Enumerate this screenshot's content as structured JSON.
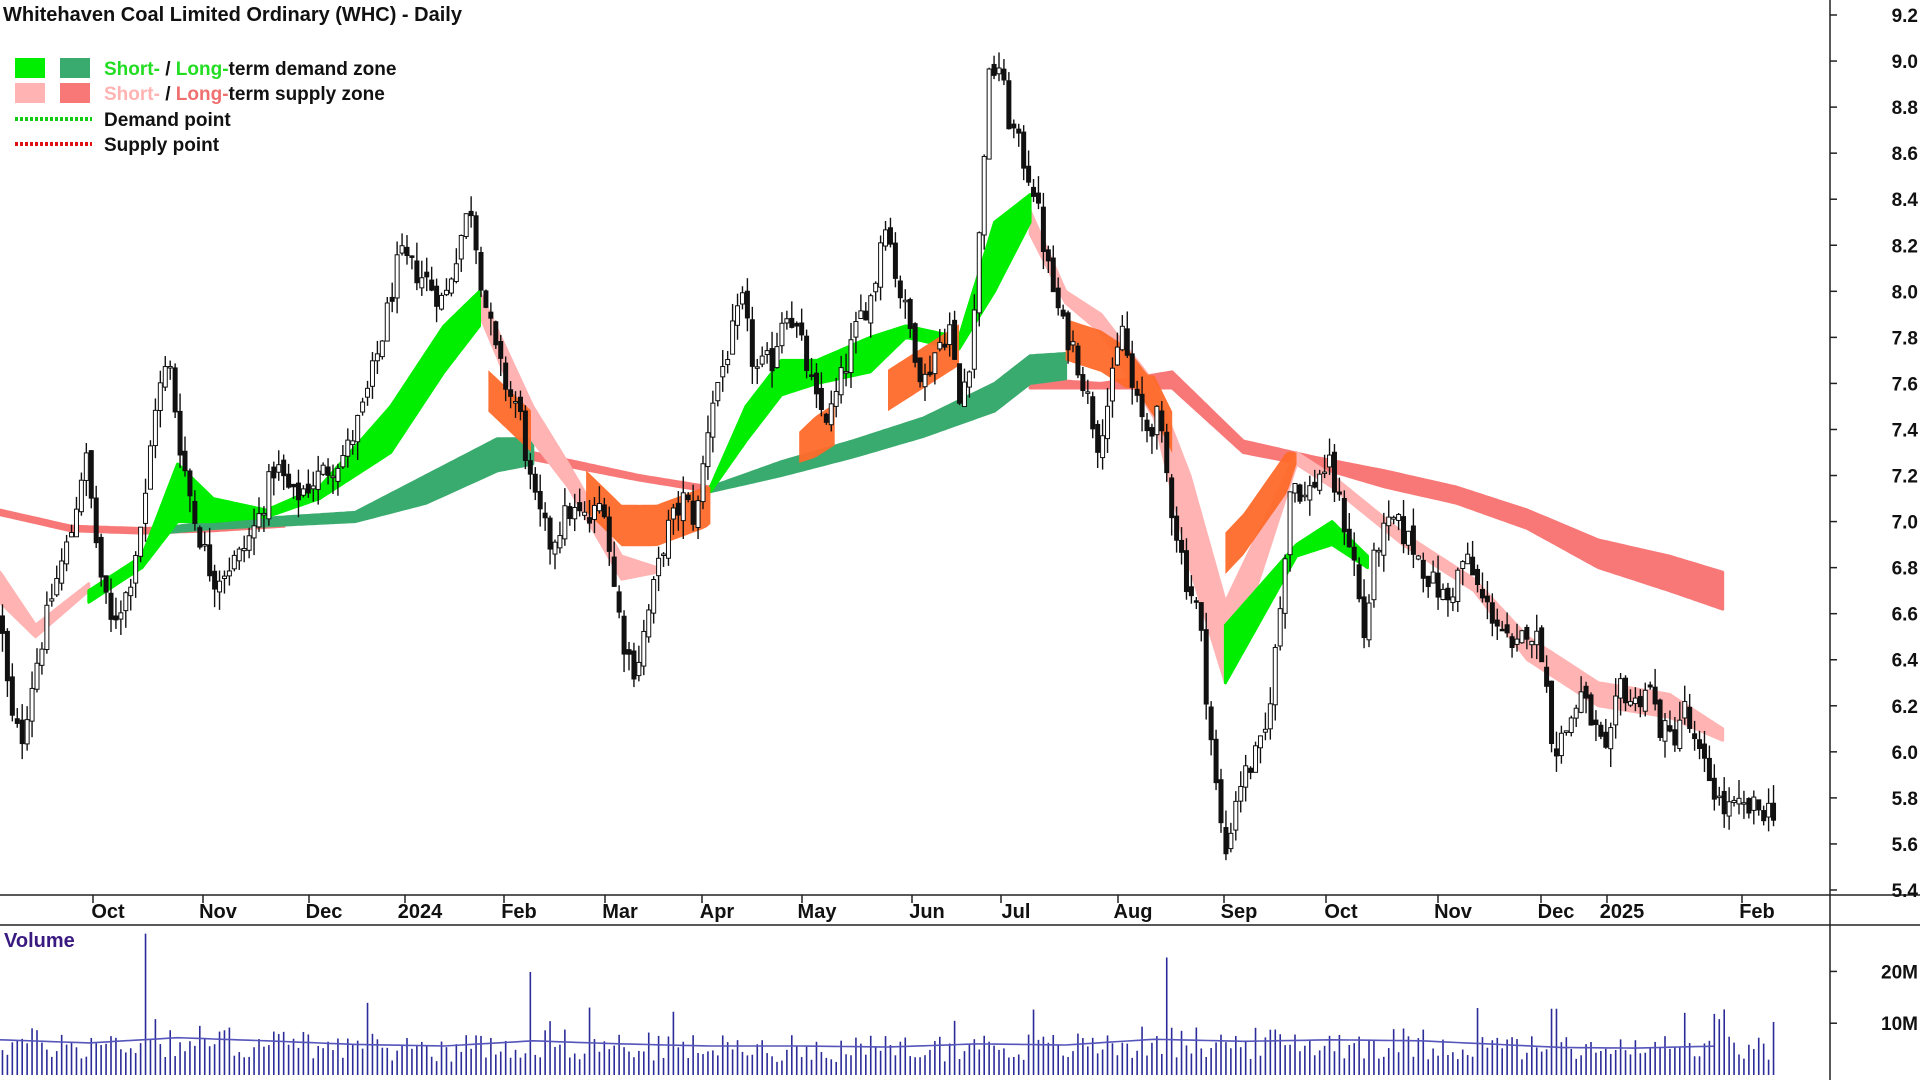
{
  "chart_data": {
    "type": "candlestick",
    "title": "Whitehaven Coal Limited Ordinary (WHC) - Daily",
    "price_axis": {
      "range": [
        5.4,
        9.2
      ],
      "ticks": [
        9.2,
        9.0,
        8.8,
        8.6,
        8.4,
        8.2,
        8.0,
        7.8,
        7.6,
        7.4,
        7.2,
        7.0,
        6.8,
        6.6,
        6.4,
        6.2,
        6.0,
        5.8,
        5.6,
        5.4
      ],
      "position": "right"
    },
    "x_labels": [
      "Oct",
      "Nov",
      "Dec",
      "2024",
      "Feb",
      "Mar",
      "Apr",
      "May",
      "Jun",
      "Jul",
      "Aug",
      "Sep",
      "Oct",
      "Nov",
      "Dec",
      "2025",
      "Feb"
    ],
    "legend": {
      "placement": "top-left",
      "items": [
        {
          "kind": "zone",
          "swatches": [
            "#00ee00",
            "#3aab6e"
          ],
          "parts": [
            {
              "text": "Short-",
              "color": "#22dd22"
            },
            {
              "text": " / ",
              "color": "#111111"
            },
            {
              "text": "Long-",
              "color": "#22dd22"
            },
            {
              "text": "term demand zone",
              "color": "#111111"
            }
          ]
        },
        {
          "kind": "zone",
          "swatches": [
            "#ffb3b3",
            "#f87878"
          ],
          "parts": [
            {
              "text": "Short-",
              "color": "#ffb3b3"
            },
            {
              "text": " / ",
              "color": "#111111"
            },
            {
              "text": "Long-",
              "color": "#f07070"
            },
            {
              "text": "term supply zone",
              "color": "#111111"
            }
          ]
        },
        {
          "kind": "point",
          "color": "#11cc11",
          "parts": [
            {
              "text": "Demand point",
              "color": "#111111"
            }
          ]
        },
        {
          "kind": "point",
          "color": "#dd1111",
          "parts": [
            {
              "text": "Supply point",
              "color": "#111111"
            }
          ]
        }
      ]
    },
    "price_path": [
      {
        "p": 0,
        "v": 6.6
      },
      {
        "p": 0.006,
        "v": 6.15
      },
      {
        "p": 0.012,
        "v": 6.05
      },
      {
        "p": 0.018,
        "v": 6.3
      },
      {
        "p": 0.03,
        "v": 6.7
      },
      {
        "p": 0.04,
        "v": 6.95
      },
      {
        "p": 0.048,
        "v": 7.3
      },
      {
        "p": 0.056,
        "v": 6.8
      },
      {
        "p": 0.062,
        "v": 6.55
      },
      {
        "p": 0.072,
        "v": 6.7
      },
      {
        "p": 0.082,
        "v": 7.1
      },
      {
        "p": 0.087,
        "v": 7.5
      },
      {
        "p": 0.095,
        "v": 7.7
      },
      {
        "p": 0.102,
        "v": 7.3
      },
      {
        "p": 0.11,
        "v": 7.0
      },
      {
        "p": 0.12,
        "v": 6.75
      },
      {
        "p": 0.135,
        "v": 6.85
      },
      {
        "p": 0.145,
        "v": 7.0
      },
      {
        "p": 0.155,
        "v": 7.25
      },
      {
        "p": 0.165,
        "v": 7.1
      },
      {
        "p": 0.18,
        "v": 7.2
      },
      {
        "p": 0.195,
        "v": 7.3
      },
      {
        "p": 0.205,
        "v": 7.5
      },
      {
        "p": 0.215,
        "v": 7.8
      },
      {
        "p": 0.225,
        "v": 8.15
      },
      {
        "p": 0.232,
        "v": 8.1
      },
      {
        "p": 0.24,
        "v": 8.05
      },
      {
        "p": 0.25,
        "v": 7.95
      },
      {
        "p": 0.258,
        "v": 8.2
      },
      {
        "p": 0.265,
        "v": 8.38
      },
      {
        "p": 0.272,
        "v": 8.0
      },
      {
        "p": 0.28,
        "v": 7.7
      },
      {
        "p": 0.287,
        "v": 7.55
      },
      {
        "p": 0.292,
        "v": 7.5
      },
      {
        "p": 0.3,
        "v": 7.1
      },
      {
        "p": 0.31,
        "v": 6.9
      },
      {
        "p": 0.32,
        "v": 7.05
      },
      {
        "p": 0.332,
        "v": 7.0
      },
      {
        "p": 0.34,
        "v": 7.1
      },
      {
        "p": 0.345,
        "v": 6.75
      },
      {
        "p": 0.352,
        "v": 6.45
      },
      {
        "p": 0.358,
        "v": 6.35
      },
      {
        "p": 0.365,
        "v": 6.6
      },
      {
        "p": 0.375,
        "v": 6.95
      },
      {
        "p": 0.385,
        "v": 7.1
      },
      {
        "p": 0.392,
        "v": 7.0
      },
      {
        "p": 0.4,
        "v": 7.5
      },
      {
        "p": 0.41,
        "v": 7.75
      },
      {
        "p": 0.418,
        "v": 7.95
      },
      {
        "p": 0.425,
        "v": 7.65
      },
      {
        "p": 0.435,
        "v": 7.7
      },
      {
        "p": 0.442,
        "v": 7.95
      },
      {
        "p": 0.45,
        "v": 7.8
      },
      {
        "p": 0.46,
        "v": 7.5
      },
      {
        "p": 0.467,
        "v": 7.45
      },
      {
        "p": 0.475,
        "v": 7.65
      },
      {
        "p": 0.485,
        "v": 7.9
      },
      {
        "p": 0.492,
        "v": 8.0
      },
      {
        "p": 0.498,
        "v": 8.35
      },
      {
        "p": 0.505,
        "v": 8.05
      },
      {
        "p": 0.512,
        "v": 7.85
      },
      {
        "p": 0.52,
        "v": 7.6
      },
      {
        "p": 0.527,
        "v": 7.75
      },
      {
        "p": 0.535,
        "v": 7.85
      },
      {
        "p": 0.54,
        "v": 7.5
      },
      {
        "p": 0.547,
        "v": 7.75
      },
      {
        "p": 0.552,
        "v": 8.3
      },
      {
        "p": 0.556,
        "v": 8.9
      },
      {
        "p": 0.562,
        "v": 9.0
      },
      {
        "p": 0.568,
        "v": 8.75
      },
      {
        "p": 0.575,
        "v": 8.6
      },
      {
        "p": 0.582,
        "v": 8.45
      },
      {
        "p": 0.59,
        "v": 8.1
      },
      {
        "p": 0.598,
        "v": 7.85
      },
      {
        "p": 0.605,
        "v": 7.75
      },
      {
        "p": 0.612,
        "v": 7.55
      },
      {
        "p": 0.618,
        "v": 7.35
      },
      {
        "p": 0.625,
        "v": 7.55
      },
      {
        "p": 0.632,
        "v": 7.85
      },
      {
        "p": 0.638,
        "v": 7.55
      },
      {
        "p": 0.645,
        "v": 7.4
      },
      {
        "p": 0.652,
        "v": 7.45
      },
      {
        "p": 0.66,
        "v": 7.05
      },
      {
        "p": 0.668,
        "v": 6.75
      },
      {
        "p": 0.675,
        "v": 6.6
      },
      {
        "p": 0.68,
        "v": 6.2
      },
      {
        "p": 0.686,
        "v": 5.75
      },
      {
        "p": 0.69,
        "v": 5.55
      },
      {
        "p": 0.697,
        "v": 5.85
      },
      {
        "p": 0.705,
        "v": 5.95
      },
      {
        "p": 0.712,
        "v": 6.05
      },
      {
        "p": 0.72,
        "v": 6.55
      },
      {
        "p": 0.727,
        "v": 7.2
      },
      {
        "p": 0.735,
        "v": 7.1
      },
      {
        "p": 0.742,
        "v": 7.2
      },
      {
        "p": 0.748,
        "v": 7.25
      },
      {
        "p": 0.755,
        "v": 7.05
      },
      {
        "p": 0.762,
        "v": 6.85
      },
      {
        "p": 0.768,
        "v": 6.5
      },
      {
        "p": 0.775,
        "v": 6.9
      },
      {
        "p": 0.785,
        "v": 7.0
      },
      {
        "p": 0.795,
        "v": 6.9
      },
      {
        "p": 0.805,
        "v": 6.75
      },
      {
        "p": 0.815,
        "v": 6.65
      },
      {
        "p": 0.825,
        "v": 6.85
      },
      {
        "p": 0.835,
        "v": 6.65
      },
      {
        "p": 0.845,
        "v": 6.55
      },
      {
        "p": 0.852,
        "v": 6.4
      },
      {
        "p": 0.86,
        "v": 6.55
      },
      {
        "p": 0.868,
        "v": 6.45
      },
      {
        "p": 0.875,
        "v": 6.0
      },
      {
        "p": 0.882,
        "v": 6.1
      },
      {
        "p": 0.89,
        "v": 6.25
      },
      {
        "p": 0.898,
        "v": 6.1
      },
      {
        "p": 0.905,
        "v": 5.95
      },
      {
        "p": 0.912,
        "v": 6.3
      },
      {
        "p": 0.92,
        "v": 6.2
      },
      {
        "p": 0.928,
        "v": 6.3
      },
      {
        "p": 0.935,
        "v": 6.1
      },
      {
        "p": 0.942,
        "v": 6.05
      },
      {
        "p": 0.948,
        "v": 6.2
      },
      {
        "p": 0.955,
        "v": 6.0
      },
      {
        "p": 0.962,
        "v": 5.9
      },
      {
        "p": 0.97,
        "v": 5.75
      }
    ],
    "zones": [
      {
        "name": "Long-term supply zone",
        "kind": "supply",
        "term": "long",
        "color": "#f87878",
        "points": [
          [
            0,
            7.05,
            7.03
          ],
          [
            0.04,
            6.98,
            6.96
          ],
          [
            0.08,
            6.97,
            6.95
          ],
          [
            0.12,
            6.98,
            6.96
          ],
          [
            0.16,
            7.0,
            6.98
          ],
          [
            0.3,
            7.3,
            7.27
          ],
          [
            0.36,
            7.2,
            7.18
          ],
          [
            0.4,
            7.15,
            7.13
          ],
          [
            0.58,
            7.62,
            7.58
          ],
          [
            0.62,
            7.6,
            7.58
          ],
          [
            0.66,
            7.65,
            7.58
          ],
          [
            0.7,
            7.35,
            7.3
          ],
          [
            0.74,
            7.28,
            7.24
          ],
          [
            0.78,
            7.22,
            7.15
          ],
          [
            0.82,
            7.15,
            7.08
          ],
          [
            0.86,
            7.05,
            6.97
          ],
          [
            0.9,
            6.92,
            6.8
          ],
          [
            0.94,
            6.85,
            6.7
          ],
          [
            0.97,
            6.78,
            6.62
          ]
        ]
      },
      {
        "name": "Long-term demand zone",
        "kind": "demand",
        "term": "long",
        "color": "#3aab6e",
        "points": [
          [
            0.09,
            6.97,
            6.95
          ],
          [
            0.12,
            7.0,
            6.97
          ],
          [
            0.2,
            7.04,
            7.0
          ],
          [
            0.24,
            7.2,
            7.08
          ],
          [
            0.28,
            7.36,
            7.22
          ],
          [
            0.3,
            7.36,
            7.25
          ],
          [
            0.4,
            7.15,
            7.13
          ],
          [
            0.44,
            7.26,
            7.2
          ],
          [
            0.48,
            7.35,
            7.28
          ],
          [
            0.52,
            7.45,
            7.37
          ],
          [
            0.56,
            7.6,
            7.48
          ],
          [
            0.58,
            7.72,
            7.6
          ],
          [
            0.6,
            7.73,
            7.62
          ]
        ]
      },
      {
        "name": "Short-term supply zone",
        "kind": "supply",
        "term": "short",
        "color": "#ffb3b3",
        "points": [
          [
            0,
            6.78,
            6.65
          ],
          [
            0.02,
            6.55,
            6.5
          ],
          [
            0.05,
            6.73,
            6.7
          ],
          [
            0.27,
            8.0,
            7.9
          ],
          [
            0.3,
            7.5,
            7.35
          ],
          [
            0.32,
            7.25,
            7.15
          ],
          [
            0.35,
            6.85,
            6.75
          ],
          [
            0.37,
            6.8,
            6.78
          ],
          [
            0.58,
            8.35,
            8.25
          ],
          [
            0.6,
            8.0,
            7.95
          ],
          [
            0.62,
            7.9,
            7.82
          ],
          [
            0.65,
            7.6,
            7.45
          ],
          [
            0.67,
            7.2,
            6.8
          ],
          [
            0.69,
            6.65,
            6.3
          ],
          [
            0.73,
            7.3,
            7.25
          ],
          [
            0.75,
            7.2,
            7.15
          ],
          [
            0.79,
            6.95,
            6.9
          ],
          [
            0.83,
            6.75,
            6.7
          ],
          [
            0.86,
            6.5,
            6.4
          ],
          [
            0.9,
            6.3,
            6.2
          ],
          [
            0.94,
            6.25,
            6.15
          ],
          [
            0.97,
            6.1,
            6.05
          ]
        ]
      },
      {
        "name": "Short-term demand zone",
        "kind": "demand",
        "term": "short",
        "color": "#00ee00",
        "points": [
          [
            0.05,
            6.7,
            6.65
          ],
          [
            0.08,
            6.85,
            6.8
          ],
          [
            0.1,
            7.25,
            7.0
          ],
          [
            0.12,
            7.1,
            7.0
          ],
          [
            0.15,
            7.05,
            7.02
          ],
          [
            0.18,
            7.15,
            7.1
          ],
          [
            0.22,
            7.5,
            7.3
          ],
          [
            0.25,
            7.85,
            7.65
          ],
          [
            0.27,
            8.0,
            7.85
          ],
          [
            0.4,
            7.15,
            7.13
          ],
          [
            0.42,
            7.5,
            7.35
          ],
          [
            0.44,
            7.7,
            7.55
          ],
          [
            0.46,
            7.7,
            7.6
          ],
          [
            0.49,
            7.8,
            7.65
          ],
          [
            0.51,
            7.85,
            7.8
          ],
          [
            0.54,
            7.8,
            7.75
          ],
          [
            0.56,
            8.3,
            8.0
          ],
          [
            0.58,
            8.42,
            8.3
          ],
          [
            0.69,
            6.55,
            6.3
          ],
          [
            0.73,
            6.9,
            6.85
          ],
          [
            0.75,
            7.0,
            6.9
          ],
          [
            0.77,
            6.85,
            6.8
          ]
        ]
      }
    ],
    "supply_demand_bands": [
      {
        "from": 0.275,
        "to": 0.3,
        "color": "#ff6a2a"
      },
      {
        "from": 0.33,
        "to": 0.4,
        "color": "#ff6a2a"
      },
      {
        "from": 0.6,
        "to": 0.66,
        "color": "#ff6a2a"
      },
      {
        "from": 0.69,
        "to": 0.73,
        "color": "#ff6a2a"
      },
      {
        "from": 0.45,
        "to": 0.47,
        "color": "#ff6a2a"
      },
      {
        "from": 0.5,
        "to": 0.54,
        "color": "#ff6a2a"
      }
    ],
    "volume": {
      "title": "Volume",
      "range": [
        0,
        28
      ],
      "ticks": [
        {
          "value": 20,
          "label": "20M"
        },
        {
          "value": 10,
          "label": "10M"
        }
      ],
      "avg_line": {
        "color": "#5555bb",
        "points": [
          [
            0,
            6.8
          ],
          [
            0.05,
            6.2
          ],
          [
            0.1,
            7.2
          ],
          [
            0.15,
            6.6
          ],
          [
            0.2,
            5.9
          ],
          [
            0.25,
            5.6
          ],
          [
            0.3,
            6.6
          ],
          [
            0.35,
            6.0
          ],
          [
            0.4,
            5.6
          ],
          [
            0.45,
            5.6
          ],
          [
            0.5,
            5.4
          ],
          [
            0.55,
            6.0
          ],
          [
            0.6,
            5.8
          ],
          [
            0.65,
            6.9
          ],
          [
            0.7,
            6.5
          ],
          [
            0.75,
            6.8
          ],
          [
            0.8,
            6.6
          ],
          [
            0.85,
            5.8
          ],
          [
            0.88,
            5.3
          ],
          [
            0.92,
            5.2
          ],
          [
            0.97,
            5.6
          ]
        ]
      },
      "spikes": [
        {
          "p": 0.082,
          "v": 27.3
        },
        {
          "p": 0.299,
          "v": 19.9
        },
        {
          "p": 0.656,
          "v": 22.7
        },
        {
          "p": 0.875,
          "v": 12.8
        },
        {
          "p": 0.965,
          "v": 11.8
        }
      ]
    },
    "colors": {
      "candle": "#111111",
      "volume_bar": "#2b2b99",
      "axis": "#222222"
    }
  }
}
